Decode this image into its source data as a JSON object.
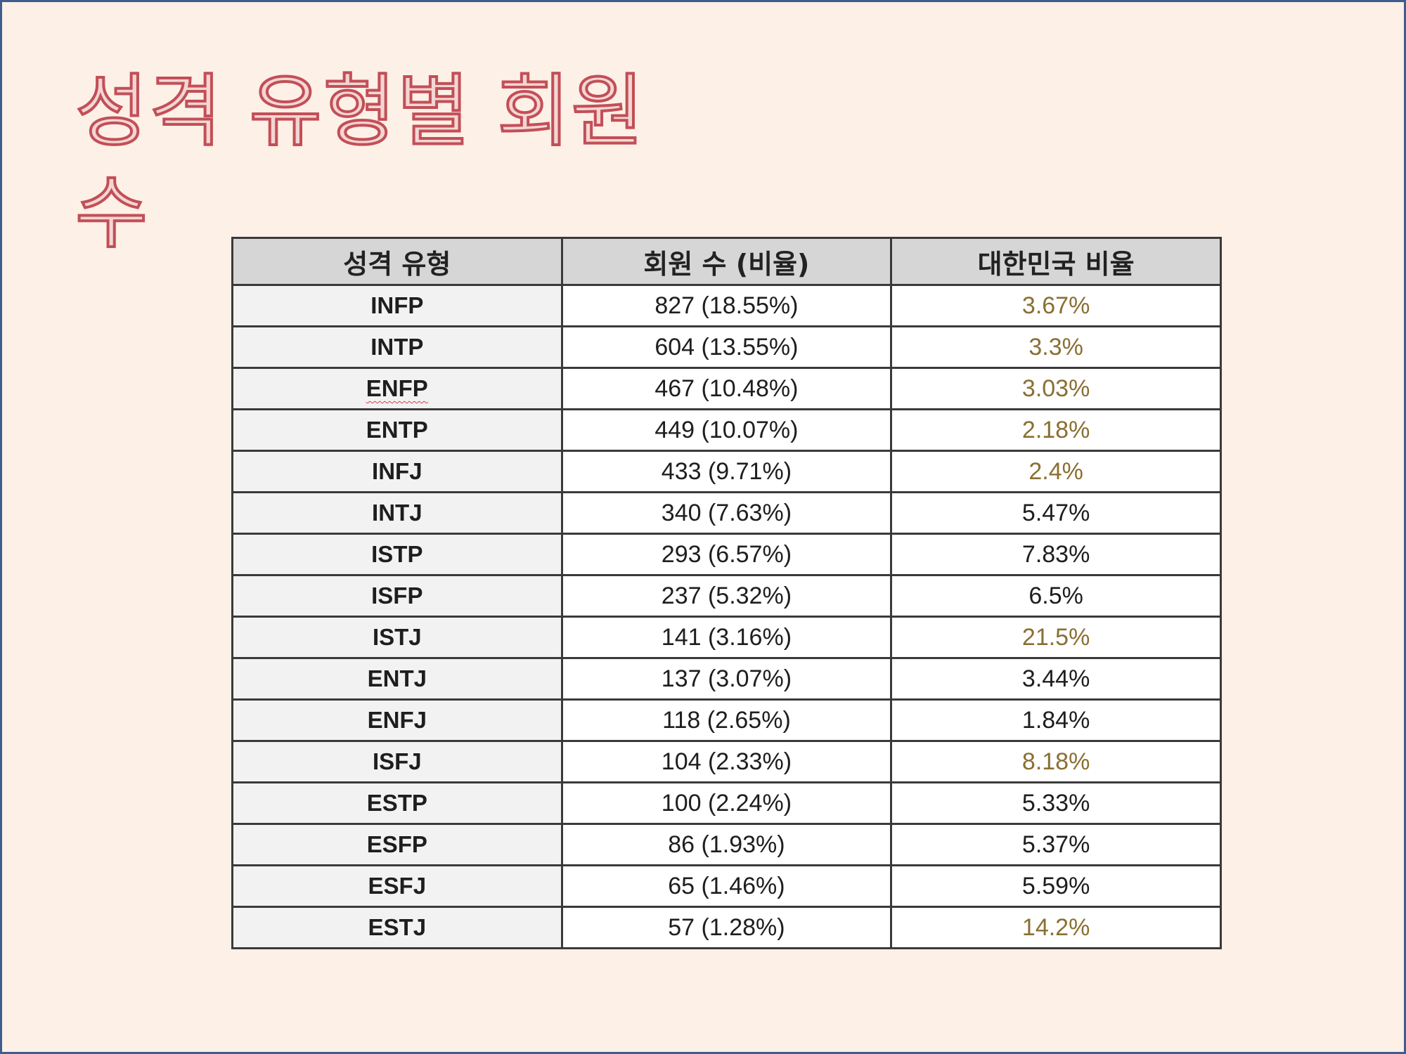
{
  "slide": {
    "title": "성격 유형별 회원 수"
  },
  "table": {
    "headers": [
      "성격 유형",
      "회원 수 (비율)",
      "대한민국 비율"
    ],
    "rows": [
      {
        "type": "INFP",
        "count": "827 (18.55%)",
        "korea": "3.67%",
        "highlight": true
      },
      {
        "type": "INTP",
        "count": "604 (13.55%)",
        "korea": "3.3%",
        "highlight": true
      },
      {
        "type": "ENFP",
        "count": "467 (10.48%)",
        "korea": "3.03%",
        "highlight": true
      },
      {
        "type": "ENTP",
        "count": "449 (10.07%)",
        "korea": "2.18%",
        "highlight": true
      },
      {
        "type": "INFJ",
        "count": "433 (9.71%)",
        "korea": "2.4%",
        "highlight": true
      },
      {
        "type": "INTJ",
        "count": "340 (7.63%)",
        "korea": "5.47%",
        "highlight": false
      },
      {
        "type": "ISTP",
        "count": "293 (6.57%)",
        "korea": "7.83%",
        "highlight": false
      },
      {
        "type": "ISFP",
        "count": "237 (5.32%)",
        "korea": "6.5%",
        "highlight": false
      },
      {
        "type": "ISTJ",
        "count": "141 (3.16%)",
        "korea": "21.5%",
        "highlight": true
      },
      {
        "type": "ENTJ",
        "count": "137 (3.07%)",
        "korea": "3.44%",
        "highlight": false
      },
      {
        "type": "ENFJ",
        "count": "118 (2.65%)",
        "korea": "1.84%",
        "highlight": false
      },
      {
        "type": "ISFJ",
        "count": "104 (2.33%)",
        "korea": "8.18%",
        "highlight": true
      },
      {
        "type": "ESTP",
        "count": "100 (2.24%)",
        "korea": "5.33%",
        "highlight": false
      },
      {
        "type": "ESFP",
        "count": "86 (1.93%)",
        "korea": "5.37%",
        "highlight": false
      },
      {
        "type": "ESFJ",
        "count": "65 (1.46%)",
        "korea": "5.59%",
        "highlight": false
      },
      {
        "type": "ESTJ",
        "count": "57 (1.28%)",
        "korea": "14.2%",
        "highlight": true
      }
    ]
  },
  "colors": {
    "background": "#fdf0e7",
    "border": "#3d5d8f",
    "title_outline": "#c24f57",
    "header_fill": "#d6d6d6",
    "type_cell_fill": "#f2f2f2",
    "highlight_text": "#8a6f32",
    "spellcheck_underline": "#d04040"
  }
}
